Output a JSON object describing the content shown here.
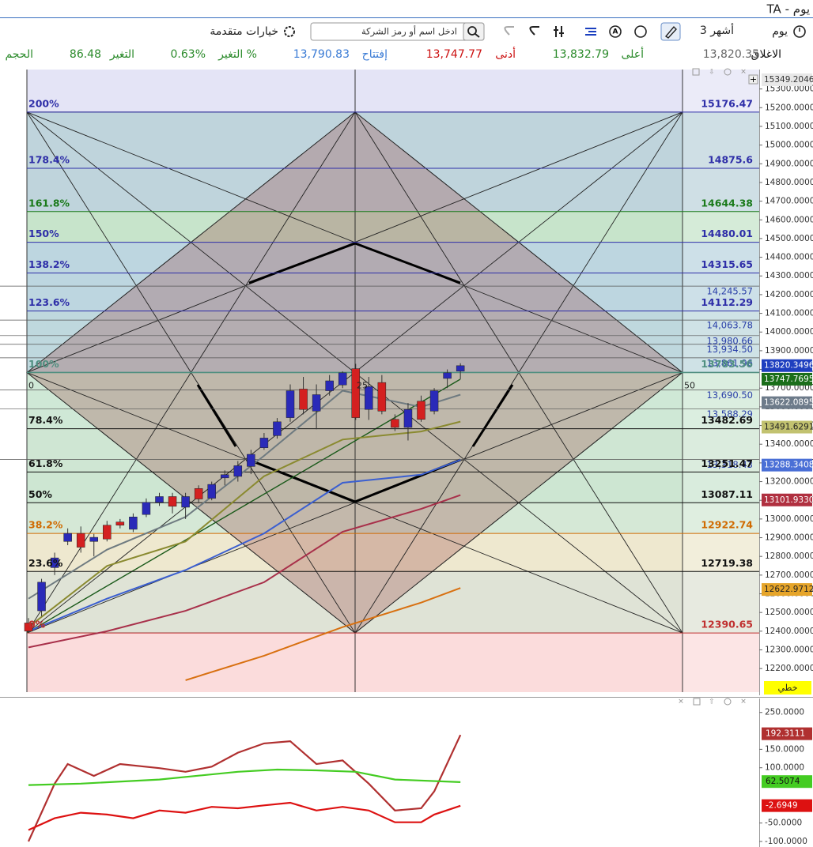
{
  "header": {
    "title": "TA - يوم"
  },
  "toolbar": {
    "period": "يوم",
    "range": "3 أشهر",
    "search_placeholder": "ادخل اسم أو رمز الشركة",
    "advanced": "خيارات متقدمة"
  },
  "stats": [
    {
      "label": "الاغلاق",
      "value": "13,820.35",
      "label_color": "#111111",
      "color": "#666666"
    },
    {
      "label": "أعلى",
      "value": "13,832.79",
      "label_color": "#2a8a2a",
      "color": "#2a8a2a"
    },
    {
      "label": "أدنى",
      "value": "13,747.77",
      "label_color": "#cc1111",
      "color": "#cc1111"
    },
    {
      "label": "إفتتاح",
      "value": "13,790.83",
      "label_color": "#3a7bd5",
      "color": "#3a7bd5"
    },
    {
      "label": "التغير %",
      "value": "0.63%",
      "label_color": "#2a8a2a",
      "color": "#2a8a2a"
    },
    {
      "label": "التغير",
      "value": "86.48",
      "label_color": "#2a8a2a",
      "color": "#2a8a2a"
    },
    {
      "label": "الحجم",
      "label_color": "#2a8a2a"
    }
  ],
  "chart_data": [
    {
      "type": "candlestick",
      "xlim": [
        -2.175,
        55.83
      ],
      "ylim": [
        12074,
        15404
      ],
      "up_color": "#2a2ab8",
      "down_color": "#d42020",
      "open": [
        12444,
        12509,
        12740,
        12880,
        12923,
        12880,
        12967,
        12984,
        12945,
        13024,
        13089,
        13120,
        13063,
        13163,
        13111,
        13220,
        13228,
        13281,
        13381,
        13446,
        13542,
        13695,
        13577,
        13686,
        13717,
        13804,
        13586,
        13730,
        13533,
        13490,
        13630,
        13577,
        13752,
        13791
      ],
      "high": [
        12470,
        12680,
        12820,
        12950,
        12960,
        12920,
        12990,
        13000,
        13030,
        13110,
        13140,
        13140,
        13140,
        13180,
        13200,
        13260,
        13310,
        13370,
        13460,
        13540,
        13720,
        13760,
        13720,
        13770,
        13790,
        13830,
        13760,
        13770,
        13560,
        13620,
        13660,
        13700,
        13800,
        13833
      ],
      "low": [
        12390,
        12480,
        12700,
        12860,
        12820,
        12800,
        12880,
        12950,
        12930,
        13010,
        13070,
        13030,
        13000,
        13090,
        13100,
        13180,
        13200,
        13240,
        13370,
        13430,
        13520,
        13560,
        13480,
        13660,
        13700,
        13530,
        13530,
        13560,
        13470,
        13420,
        13520,
        13560,
        13700,
        13748
      ],
      "close": [
        12400,
        12662,
        12792,
        12923,
        12849,
        12902,
        12893,
        12967,
        13011,
        13089,
        13120,
        13068,
        13120,
        13107,
        13185,
        13237,
        13285,
        13346,
        13433,
        13520,
        13686,
        13586,
        13665,
        13739,
        13782,
        13542,
        13708,
        13577,
        13490,
        13586,
        13533,
        13686,
        13782,
        13820
      ],
      "overlay_x": [
        0,
        6,
        12,
        18,
        24,
        30,
        33
      ],
      "overlays": [
        {
          "color": "#6e7a80",
          "values": [
            12574,
            12836,
            13011,
            13338,
            13686,
            13599,
            13665
          ]
        },
        {
          "color": "#8a8a30",
          "values": [
            12422,
            12749,
            12880,
            13229,
            13425,
            13468,
            13521
          ]
        },
        {
          "color": "#3b5fd0",
          "values": [
            12400,
            12574,
            12727,
            12923,
            13194,
            13237,
            13316
          ]
        },
        {
          "color": "#a8304a",
          "values": [
            12313,
            12400,
            12509,
            12662,
            12932,
            13054,
            13128
          ]
        },
        {
          "color": "#d87010",
          "values": [
            null,
            null,
            12138,
            12269,
            12422,
            12553,
            12631
          ]
        }
      ],
      "fib_levels": [
        {
          "label": "200%",
          "value": 15176.47,
          "color": "#2e2ea8"
        },
        {
          "label": "178.4%",
          "value": 14875.6,
          "color": "#2e2ea8"
        },
        {
          "label": "161.8%",
          "value": 14644.38,
          "color": "#1a7a1a"
        },
        {
          "label": "150%",
          "value": 14480.01,
          "color": "#2e2ea8"
        },
        {
          "label": "138.2%",
          "value": 14315.65,
          "color": "#2e2ea8"
        },
        {
          "label": "123.6%",
          "value": 14112.29,
          "color": "#2e2ea8"
        },
        {
          "label": "100%",
          "value": 13783.56,
          "color": "#4f8f80"
        },
        {
          "label": "78.4%",
          "value": 13482.69,
          "color": "#111111"
        },
        {
          "label": "61.8%",
          "value": 13251.47,
          "color": "#111111"
        },
        {
          "label": "50%",
          "value": 13087.11,
          "color": "#111111"
        },
        {
          "label": "38.2%",
          "value": 12922.74,
          "color": "#d06a00"
        },
        {
          "label": "23.6%",
          "value": 12719.38,
          "color": "#111111"
        },
        {
          "label": "0%",
          "value": 12390.65,
          "color": "#c03030"
        }
      ],
      "levels": [
        {
          "value": 14245.57,
          "label": "14,245.57"
        },
        {
          "value": 14063.78,
          "label": "14,063.78"
        },
        {
          "value": 13980.66,
          "label": "13,980.66"
        },
        {
          "value": 13934.5,
          "label": "13,934.50"
        },
        {
          "value": 13861.96,
          "label": "13,861.96"
        },
        {
          "value": 13690.5,
          "label": "13,690.50"
        },
        {
          "value": 13588.29,
          "label": "13,588.29"
        },
        {
          "value": 13318.43,
          "label": "13,318.43"
        }
      ],
      "gann_labels": [
        "0",
        "25",
        "50"
      ],
      "yticks": [
        {
          "value": 12200,
          "label": "12200.0000"
        },
        {
          "value": 12300,
          "label": "12300.0000"
        },
        {
          "value": 12400,
          "label": "12400.0000"
        },
        {
          "value": 12500,
          "label": "12500.0000"
        },
        {
          "value": 12600,
          "label": "12600.0000"
        },
        {
          "value": 12700,
          "label": "12700.0000"
        },
        {
          "value": 12800,
          "label": "12800.0000"
        },
        {
          "value": 12900,
          "label": "12900.0000"
        },
        {
          "value": 13000,
          "label": "13000.0000"
        },
        {
          "value": 13100,
          "label": "13100.0000"
        },
        {
          "value": 13200,
          "label": "13200.0000"
        },
        {
          "value": 13300,
          "label": "13300.0000"
        },
        {
          "value": 13400,
          "label": "13400.0000"
        },
        {
          "value": 13500,
          "label": "13500.0000"
        },
        {
          "value": 13600,
          "label": "13600.0000"
        },
        {
          "value": 13700,
          "label": "13700.0000"
        },
        {
          "value": 13800,
          "label": "13800.0000"
        },
        {
          "value": 13900,
          "label": "13900.0000"
        },
        {
          "value": 14000,
          "label": "14000.0000"
        },
        {
          "value": 14100,
          "label": "14100.0000"
        },
        {
          "value": 14200,
          "label": "14200.0000"
        },
        {
          "value": 14300,
          "label": "14300.0000"
        },
        {
          "value": 14400,
          "label": "14400.0000"
        },
        {
          "value": 14500,
          "label": "14500.0000"
        },
        {
          "value": 14600,
          "label": "14600.0000"
        },
        {
          "value": 14700,
          "label": "14700.0000"
        },
        {
          "value": 14800,
          "label": "14800.0000"
        },
        {
          "value": 14900,
          "label": "14900.0000"
        },
        {
          "value": 15000,
          "label": "15000.0000"
        },
        {
          "value": 15100,
          "label": "15100.0000"
        },
        {
          "value": 15200,
          "label": "15200.0000"
        },
        {
          "value": 15300,
          "label": "15300.0000"
        }
      ],
      "badges": [
        {
          "value": 15349.2046,
          "label": "15349.2046",
          "color": "#e8e8e8",
          "text_color": "#333333"
        },
        {
          "value": 13820.3496,
          "label": "13820.3496",
          "color": "#1e3fbf",
          "text_color": "#ffffff"
        },
        {
          "value": 13747.7695,
          "label": "13747.7695",
          "color": "#1a6e1a",
          "text_color": "#ffffff"
        },
        {
          "value": 13622.0895,
          "label": "13622.0895",
          "color": "#6d7b8a",
          "text_color": "#ffffff"
        },
        {
          "value": 13491.6291,
          "label": "13491.6291",
          "color": "#c2c270",
          "text_color": "#222222"
        },
        {
          "value": 13288.3408,
          "label": "13288.3408",
          "color": "#4a6fd6",
          "text_color": "#ffffff"
        },
        {
          "value": 13101.933,
          "label": "13101.9330",
          "color": "#b03040",
          "text_color": "#ffffff"
        },
        {
          "value": 12622.9712,
          "label": "12622.9712",
          "color": "#e6a52a",
          "text_color": "#222222"
        }
      ],
      "scale_mode": "خطي",
      "scale_mode_color": "#ffff00"
    },
    {
      "type": "line",
      "xlim": [
        -2.175,
        55.83
      ],
      "ylim": [
        -115,
        288
      ],
      "yticks": [
        {
          "value": 250,
          "label": "250.0000"
        },
        {
          "value": 150,
          "label": "150.0000"
        },
        {
          "value": 100,
          "label": "100.0000"
        },
        {
          "value": -50,
          "label": "-50.0000"
        },
        {
          "value": -100,
          "label": "-100.0000"
        }
      ],
      "series": [
        {
          "color": "#b03030",
          "x": [
            0,
            2,
            3,
            5,
            7,
            10,
            12,
            14,
            16,
            18,
            20,
            22,
            24,
            26,
            28,
            30,
            31,
            33
          ],
          "values": [
            -100,
            57,
            110,
            78,
            110,
            99,
            89,
            103,
            141,
            166,
            172,
            110,
            120,
            57,
            -16,
            -10,
            36,
            189
          ]
        },
        {
          "color": "#44cc22",
          "x": [
            0,
            4,
            10,
            16,
            19,
            22,
            25,
            28,
            33
          ],
          "values": [
            53,
            57,
            68,
            89,
            95,
            93,
            89,
            68,
            61
          ]
        },
        {
          "color": "#dd1111",
          "x": [
            0,
            2,
            4,
            6,
            8,
            10,
            12,
            14,
            16,
            18,
            20,
            22,
            24,
            26,
            28,
            30,
            31,
            33
          ],
          "values": [
            -69,
            -37,
            -22,
            -27,
            -37,
            -16,
            -22,
            -6,
            -10,
            -2,
            5,
            -16,
            -6,
            -16,
            -48,
            -48,
            -27,
            -3
          ]
        }
      ],
      "badges": [
        {
          "value": 192.3111,
          "label": "192.3111",
          "color": "#b03030",
          "text_color": "#ffffff"
        },
        {
          "value": 62.5074,
          "label": "62.5074",
          "color": "#44cc22",
          "text_color": "#111111"
        },
        {
          "value": -2.6949,
          "label": "-2.6949",
          "color": "#dd1111",
          "text_color": "#ffffff"
        }
      ]
    }
  ]
}
